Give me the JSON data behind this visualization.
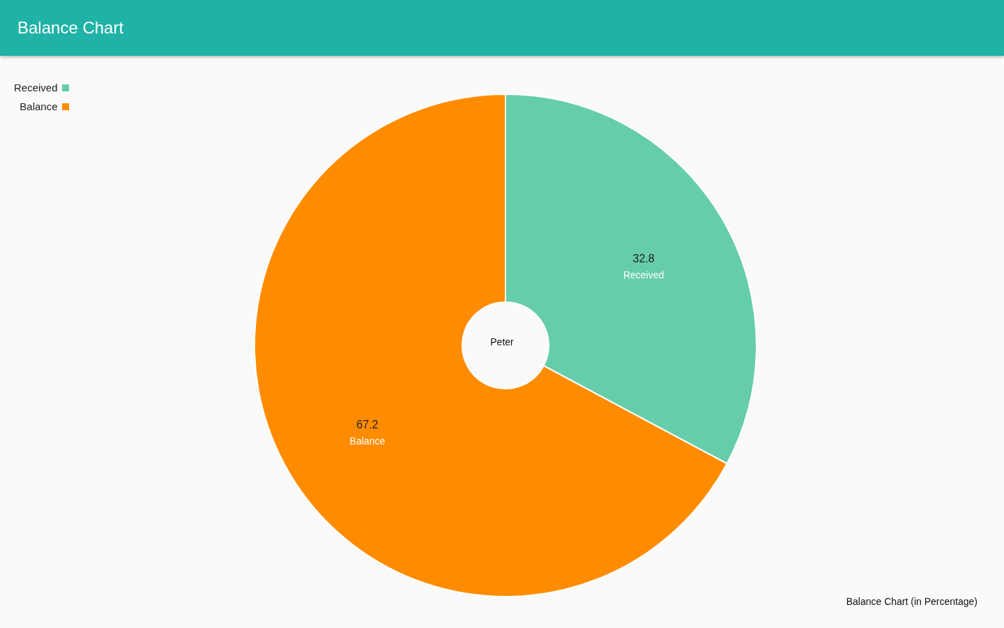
{
  "chart_data": {
    "type": "donut",
    "title": "Balance Chart",
    "categories": [
      "Received",
      "Balance"
    ],
    "values": [
      32.8,
      67.2
    ],
    "colors": [
      "#66cdaa",
      "#ff8c00"
    ],
    "data_labels": true,
    "legend": "top left",
    "annotations": [
      "Peter",
      "Balance Chart (in Percentage)"
    ]
  }
}
